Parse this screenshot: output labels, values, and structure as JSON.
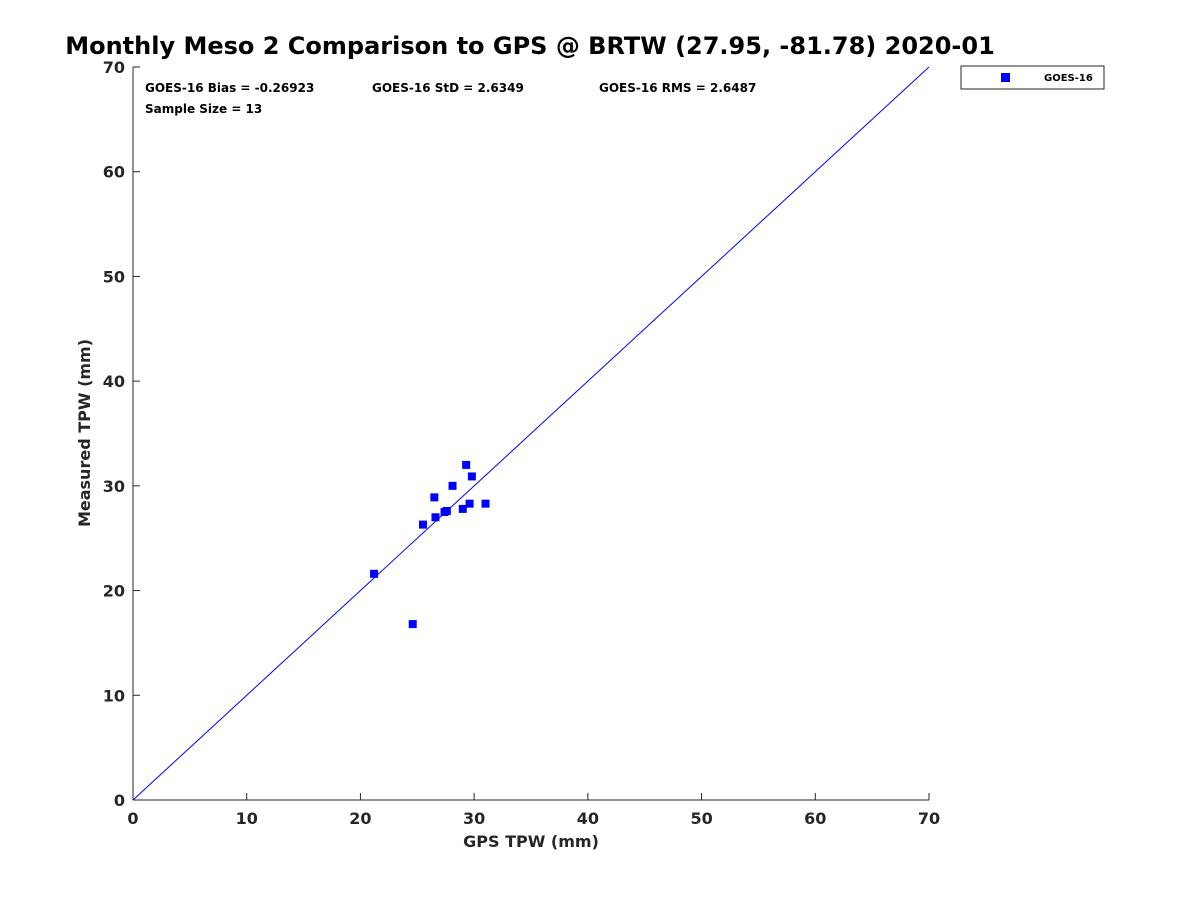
{
  "chart_data": {
    "type": "scatter",
    "title": "Monthly Meso 2 Comparison to GPS @ BRTW (27.95, -81.78) 2020-01",
    "xlabel": "GPS TPW (mm)",
    "ylabel": "Measured TPW (mm)",
    "xlim": [
      0,
      70
    ],
    "ylim": [
      0,
      70
    ],
    "x_ticks": [
      "0",
      "10",
      "20",
      "30",
      "40",
      "50",
      "60",
      "70"
    ],
    "y_ticks": [
      "0",
      "10",
      "20",
      "30",
      "40",
      "50",
      "60",
      "70"
    ],
    "grid": false,
    "legend_position": "outside-top-right",
    "reference_line": {
      "type": "one-to-one",
      "from": [
        0,
        0
      ],
      "to": [
        70,
        70
      ],
      "color": "#0000ff"
    },
    "series": [
      {
        "name": "GOES-16",
        "color": "#0000ff",
        "marker": "square",
        "points": [
          {
            "x": 21.2,
            "y": 21.6
          },
          {
            "x": 24.6,
            "y": 16.8
          },
          {
            "x": 25.5,
            "y": 26.3
          },
          {
            "x": 26.5,
            "y": 28.9
          },
          {
            "x": 26.6,
            "y": 27.0
          },
          {
            "x": 27.4,
            "y": 27.5
          },
          {
            "x": 27.6,
            "y": 27.6
          },
          {
            "x": 28.1,
            "y": 30.0
          },
          {
            "x": 29.0,
            "y": 27.8
          },
          {
            "x": 29.3,
            "y": 32.0
          },
          {
            "x": 29.6,
            "y": 28.3
          },
          {
            "x": 29.8,
            "y": 30.9
          },
          {
            "x": 31.0,
            "y": 28.3
          }
        ]
      }
    ],
    "annotations": [
      "GOES-16 Bias = -0.26923",
      "GOES-16 StD = 2.6349",
      "GOES-16 RMS = 2.6487",
      "Sample Size = 13"
    ]
  }
}
